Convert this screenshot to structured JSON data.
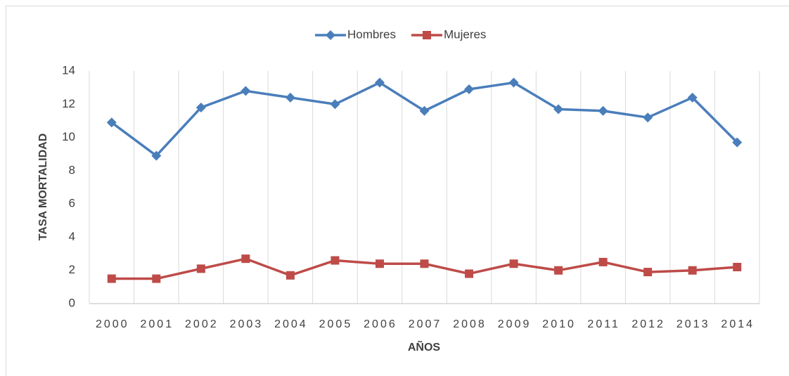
{
  "chart_data": {
    "type": "line",
    "x_label": "AÑOS",
    "y_label": "TASA MORTALIDAD",
    "categories": [
      "2000",
      "2001",
      "2002",
      "2003",
      "2004",
      "2005",
      "2006",
      "2007",
      "2008",
      "2009",
      "2010",
      "2011",
      "2012",
      "2013",
      "2014"
    ],
    "series": [
      {
        "name": "Hombres",
        "color": "#4a7ebb",
        "marker": "diamond",
        "values": [
          10.9,
          8.9,
          11.8,
          12.8,
          12.4,
          12.0,
          13.3,
          11.6,
          12.9,
          13.3,
          11.7,
          11.6,
          11.2,
          12.4,
          9.7
        ]
      },
      {
        "name": "Mujeres",
        "color": "#be4b48",
        "marker": "square",
        "values": [
          1.5,
          1.5,
          2.1,
          2.7,
          1.7,
          2.6,
          2.4,
          2.4,
          1.8,
          2.4,
          2.0,
          2.5,
          1.9,
          2.0,
          2.2
        ]
      }
    ],
    "ylim": [
      0,
      14
    ],
    "yticks": [
      0,
      2,
      4,
      6,
      8,
      10,
      12,
      14
    ],
    "grid": true,
    "legend": "top"
  }
}
